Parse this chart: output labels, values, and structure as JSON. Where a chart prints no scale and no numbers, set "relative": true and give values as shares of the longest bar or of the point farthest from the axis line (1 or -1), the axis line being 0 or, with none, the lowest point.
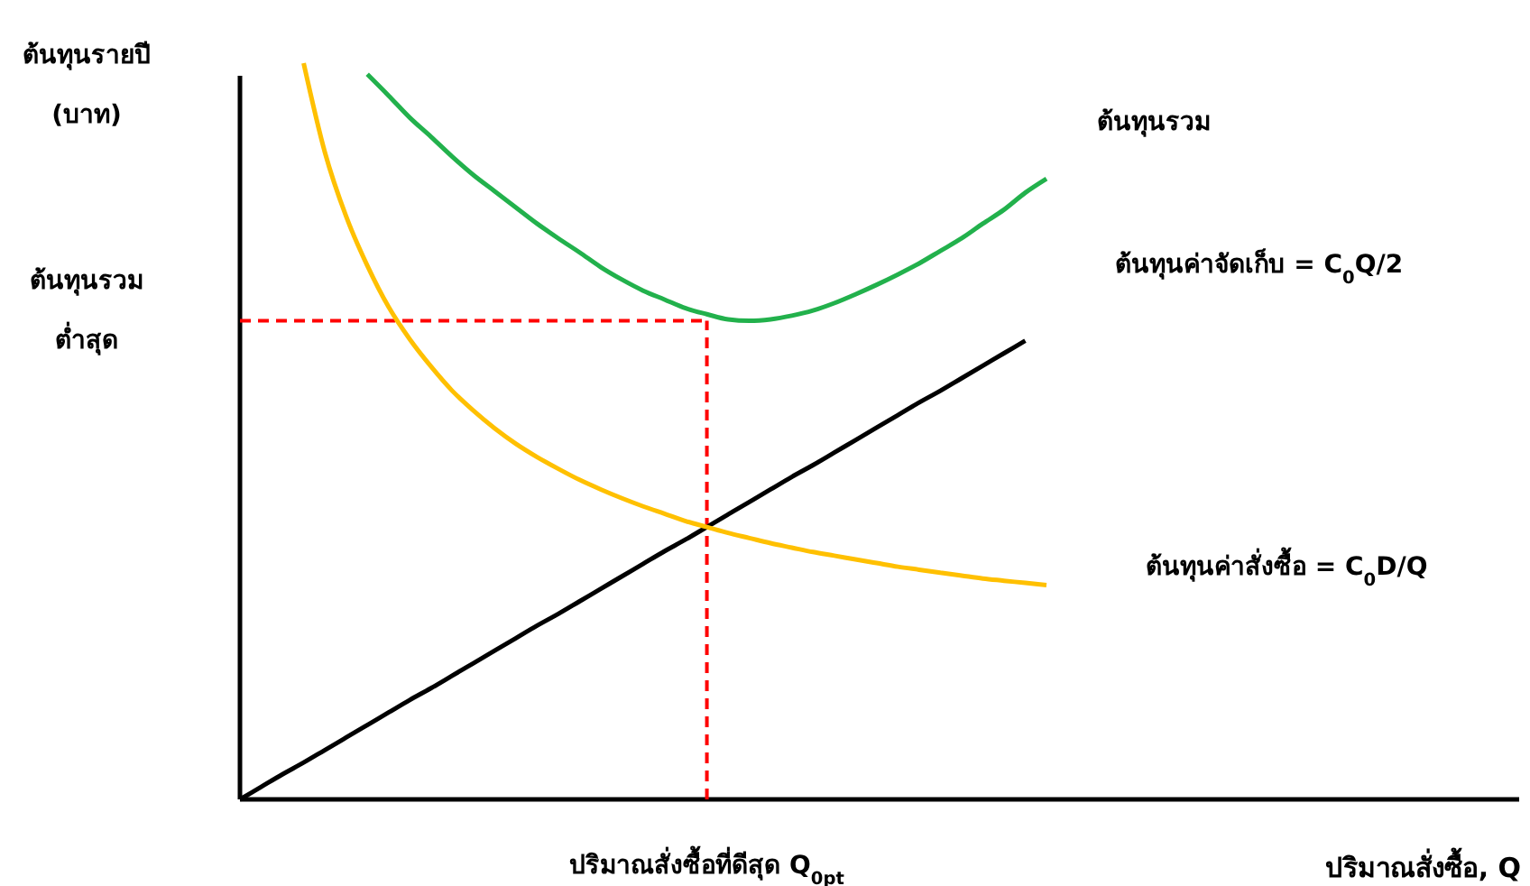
{
  "chart_data": {
    "type": "line",
    "relative": true,
    "legend": false,
    "grid": false,
    "line_style": "solid",
    "marker": "none",
    "ylabel": "ต้นทุนรายปี\n(บาท)",
    "categories": [
      null,
      null,
      null,
      null,
      null,
      null,
      null,
      null,
      null,
      null,
      null,
      null,
      null,
      null,
      null,
      null,
      null,
      null,
      null,
      null,
      null,
      null,
      null,
      null,
      null,
      null,
      null,
      null,
      null,
      null,
      null,
      null,
      null,
      null,
      null,
      null,
      null,
      null,
      null
    ],
    "annotations": [
      "ปริมาณสั่งซื้อที่ดีสุด Q$_{0pt}$",
      "ปริมาณสั่งซื้อ, Q"
    ],
    "series": [
      {
        "name": "ต้นทุนรวม",
        "color": "#22b14c",
        "values": [
          null,
          null,
          null,
          null,
          null,
          null,
          0.985,
          0.956,
          0.926,
          0.9,
          0.873,
          0.848,
          0.826,
          0.804,
          0.782,
          0.762,
          0.743,
          0.723,
          0.706,
          0.691,
          0.679,
          0.667,
          0.659,
          0.652,
          0.65,
          0.652,
          0.657,
          0.664,
          0.674,
          0.686,
          0.699,
          0.713,
          0.728,
          0.745,
          0.762,
          0.782,
          0.801,
          0.824,
          0.843
        ]
      },
      {
        "name": "ต้นทุนค่าจัดเก็บ = C$_{0}$Q/2",
        "color": "#000000",
        "values": [
          0,
          0.017,
          0.034,
          0.05,
          0.067,
          0.084,
          0.101,
          0.118,
          0.135,
          0.151,
          0.168,
          0.185,
          0.202,
          0.219,
          0.236,
          0.252,
          0.269,
          0.286,
          0.303,
          0.32,
          0.337,
          0.353,
          0.37,
          0.387,
          0.404,
          0.421,
          0.438,
          0.454,
          0.471,
          0.488,
          0.505,
          0.522,
          0.539,
          0.555,
          0.572,
          0.589,
          0.606,
          0.623,
          null
        ]
      },
      {
        "name": "ต้นทุนค่าสั่งซื้อ = C$_{0}$D/Q",
        "color": "#ffc000",
        "values": [
          null,
          null,
          null,
          1.0,
          0.879,
          0.792,
          0.725,
          0.669,
          0.625,
          0.588,
          0.555,
          0.528,
          0.504,
          0.483,
          0.465,
          0.449,
          0.434,
          0.421,
          0.409,
          0.398,
          0.388,
          0.378,
          0.37,
          0.362,
          0.355,
          0.348,
          0.342,
          0.336,
          0.331,
          0.326,
          0.321,
          0.316,
          0.312,
          0.308,
          0.304,
          0.3,
          0.297,
          0.294,
          0.291
        ]
      }
    ],
    "ref_lines": [
      {
        "axis": "y",
        "value": 0.65,
        "label": "ต้นทุนรวม\nต่ำสุด",
        "color": "#ff0000",
        "line_style": "dashed"
      }
    ]
  }
}
